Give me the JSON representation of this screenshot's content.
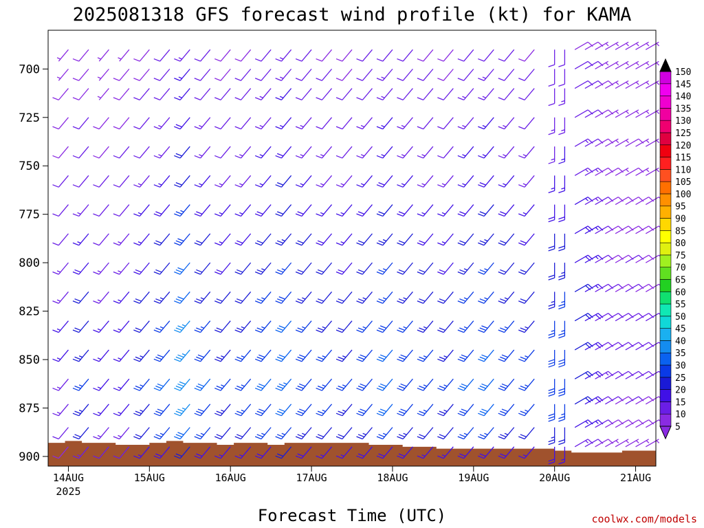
{
  "chart_data": {
    "type": "wind-barb-time-height",
    "title": "2025081318 GFS forecast wind profile (kt) for KAMA",
    "xlabel": "Forecast Time (UTC)",
    "ylabel": "",
    "y_axis": {
      "unit": "hPa",
      "inverted": true,
      "range": [
        680,
        905
      ],
      "ticks": [
        700,
        725,
        750,
        775,
        800,
        825,
        850,
        875,
        900
      ]
    },
    "x_axis": {
      "range_hours": [
        -6,
        174
      ],
      "ticks": [
        {
          "hour": 0,
          "label": "14AUG",
          "sublabel": "2025"
        },
        {
          "hour": 24,
          "label": "15AUG",
          "sublabel": ""
        },
        {
          "hour": 48,
          "label": "16AUG",
          "sublabel": ""
        },
        {
          "hour": 72,
          "label": "17AUG",
          "sublabel": ""
        },
        {
          "hour": 96,
          "label": "18AUG",
          "sublabel": ""
        },
        {
          "hour": 120,
          "label": "19AUG",
          "sublabel": ""
        },
        {
          "hour": 144,
          "label": "20AUG",
          "sublabel": ""
        },
        {
          "hour": 168,
          "label": "21AUG",
          "sublabel": ""
        }
      ]
    },
    "colorbar": {
      "unit": "kt",
      "levels": [
        5,
        10,
        15,
        20,
        25,
        30,
        35,
        40,
        45,
        50,
        55,
        60,
        65,
        70,
        75,
        80,
        85,
        90,
        95,
        100,
        105,
        110,
        115,
        120,
        125,
        130,
        135,
        140,
        145,
        150
      ],
      "colors": [
        "#8a2be2",
        "#6a1ee6",
        "#4010e6",
        "#1a1ad6",
        "#0a3ae6",
        "#0a62f0",
        "#148cf0",
        "#1ab0f0",
        "#10d8d8",
        "#10e8b4",
        "#10e070",
        "#22d022",
        "#60e020",
        "#a0f020",
        "#e0f010",
        "#ffff00",
        "#ffd800",
        "#ffb000",
        "#ff9000",
        "#ff7000",
        "#ff5020",
        "#ff2020",
        "#f00010",
        "#e00040",
        "#f00070",
        "#f000a0",
        "#f000d0",
        "#f000f0",
        "#d000e0",
        "#000000"
      ]
    },
    "terrain": {
      "color": "#a0522d",
      "surface_pressure_hpa": [
        893,
        892,
        893,
        893,
        894,
        894,
        893,
        892,
        893,
        893,
        894,
        893,
        893,
        894,
        893,
        893,
        893,
        893,
        893,
        894,
        894,
        895,
        895,
        896,
        896,
        896,
        896,
        896,
        896,
        896,
        897,
        898,
        898,
        898,
        897,
        897
      ]
    },
    "wind_rows": [
      {
        "pressure": 690,
        "speeds_kt": [
          7,
          8,
          6,
          7,
          9,
          10,
          14,
          10,
          8,
          9,
          11,
          13,
          10,
          9,
          8,
          10,
          12,
          10,
          9,
          8,
          11,
          12,
          10,
          9,
          10,
          11,
          9,
          9,
          7,
          6,
          5,
          6,
          5,
          5,
          5,
          6
        ]
      },
      {
        "pressure": 700,
        "speeds_kt": [
          7,
          8,
          7,
          8,
          9,
          11,
          15,
          11,
          9,
          10,
          12,
          14,
          11,
          10,
          9,
          11,
          13,
          11,
          10,
          9,
          12,
          13,
          11,
          10,
          11,
          12,
          10,
          10,
          7,
          6,
          6,
          6,
          5,
          5,
          6,
          7
        ]
      },
      {
        "pressure": 710,
        "speeds_kt": [
          8,
          9,
          7,
          8,
          10,
          12,
          16,
          12,
          10,
          11,
          13,
          15,
          12,
          11,
          10,
          12,
          14,
          12,
          11,
          10,
          13,
          14,
          12,
          11,
          12,
          13,
          11,
          10,
          8,
          6,
          6,
          7,
          6,
          6,
          6,
          7
        ]
      },
      {
        "pressure": 725,
        "speeds_kt": [
          8,
          10,
          8,
          9,
          11,
          13,
          18,
          13,
          11,
          12,
          14,
          16,
          13,
          12,
          11,
          13,
          15,
          13,
          12,
          11,
          14,
          15,
          13,
          12,
          13,
          14,
          12,
          11,
          8,
          7,
          6,
          7,
          6,
          6,
          7,
          8
        ]
      },
      {
        "pressure": 740,
        "speeds_kt": [
          9,
          11,
          9,
          10,
          12,
          14,
          20,
          14,
          12,
          13,
          15,
          18,
          14,
          13,
          12,
          14,
          17,
          14,
          13,
          12,
          15,
          17,
          14,
          13,
          14,
          15,
          13,
          12,
          9,
          7,
          7,
          8,
          7,
          7,
          7,
          8
        ]
      },
      {
        "pressure": 755,
        "speeds_kt": [
          10,
          12,
          10,
          11,
          13,
          16,
          22,
          16,
          13,
          14,
          17,
          20,
          16,
          14,
          13,
          16,
          19,
          16,
          14,
          13,
          17,
          19,
          16,
          14,
          16,
          17,
          14,
          13,
          9,
          8,
          7,
          8,
          7,
          7,
          8,
          9
        ]
      },
      {
        "pressure": 770,
        "speeds_kt": [
          11,
          14,
          11,
          12,
          15,
          18,
          25,
          18,
          15,
          16,
          19,
          22,
          18,
          16,
          15,
          18,
          21,
          18,
          16,
          15,
          19,
          21,
          18,
          16,
          18,
          19,
          16,
          14,
          10,
          8,
          8,
          9,
          8,
          8,
          8,
          9
        ]
      },
      {
        "pressure": 785,
        "speeds_kt": [
          12,
          16,
          12,
          13,
          17,
          20,
          28,
          20,
          17,
          18,
          21,
          24,
          20,
          18,
          17,
          20,
          23,
          20,
          18,
          17,
          21,
          23,
          20,
          18,
          20,
          21,
          18,
          15,
          10,
          9,
          8,
          9,
          8,
          8,
          9,
          10
        ]
      },
      {
        "pressure": 800,
        "speeds_kt": [
          13,
          18,
          13,
          14,
          19,
          22,
          30,
          22,
          19,
          20,
          23,
          26,
          22,
          20,
          19,
          22,
          25,
          22,
          20,
          19,
          23,
          25,
          22,
          20,
          22,
          23,
          19,
          16,
          11,
          9,
          9,
          10,
          9,
          9,
          9,
          10
        ]
      },
      {
        "pressure": 815,
        "speeds_kt": [
          14,
          20,
          14,
          15,
          20,
          24,
          32,
          24,
          20,
          22,
          25,
          28,
          24,
          22,
          20,
          24,
          27,
          24,
          22,
          20,
          25,
          27,
          24,
          22,
          24,
          25,
          20,
          17,
          11,
          10,
          9,
          10,
          9,
          9,
          10,
          11
        ]
      },
      {
        "pressure": 830,
        "speeds_kt": [
          15,
          22,
          15,
          16,
          22,
          26,
          35,
          26,
          22,
          24,
          27,
          30,
          26,
          24,
          22,
          26,
          29,
          26,
          24,
          22,
          27,
          29,
          26,
          24,
          26,
          27,
          21,
          18,
          12,
          10,
          10,
          11,
          10,
          10,
          10,
          11
        ]
      },
      {
        "pressure": 845,
        "speeds_kt": [
          15,
          24,
          16,
          17,
          24,
          28,
          37,
          28,
          24,
          26,
          29,
          32,
          28,
          26,
          24,
          28,
          31,
          28,
          26,
          24,
          29,
          31,
          28,
          26,
          28,
          28,
          22,
          19,
          12,
          11,
          10,
          11,
          10,
          10,
          11,
          12
        ]
      },
      {
        "pressure": 860,
        "speeds_kt": [
          14,
          25,
          16,
          17,
          25,
          30,
          38,
          30,
          25,
          27,
          30,
          33,
          29,
          27,
          25,
          29,
          32,
          29,
          27,
          25,
          30,
          32,
          29,
          27,
          29,
          28,
          22,
          19,
          13,
          11,
          10,
          11,
          10,
          10,
          11,
          12
        ]
      },
      {
        "pressure": 873,
        "speeds_kt": [
          13,
          24,
          15,
          16,
          24,
          29,
          36,
          29,
          24,
          26,
          29,
          31,
          28,
          26,
          24,
          28,
          30,
          28,
          26,
          24,
          29,
          30,
          28,
          26,
          28,
          26,
          20,
          18,
          12,
          10,
          9,
          10,
          9,
          9,
          10,
          11
        ]
      },
      {
        "pressure": 885,
        "speeds_kt": [
          11,
          20,
          13,
          14,
          20,
          25,
          30,
          25,
          20,
          22,
          25,
          27,
          24,
          22,
          20,
          24,
          26,
          24,
          22,
          20,
          25,
          26,
          24,
          22,
          24,
          22,
          17,
          15,
          10,
          9,
          8,
          9,
          8,
          8,
          9,
          10
        ]
      },
      {
        "pressure": 895,
        "speeds_kt": [
          8,
          14,
          10,
          11,
          15,
          18,
          22,
          18,
          15,
          16,
          18,
          20,
          18,
          16,
          15,
          18,
          19,
          18,
          16,
          15,
          18,
          19,
          18,
          16,
          18,
          16,
          13,
          11,
          8,
          7,
          6,
          7,
          6,
          6,
          7,
          8
        ]
      }
    ],
    "wind_rows_hours": [
      0,
      6,
      12,
      18,
      24,
      30,
      36,
      42,
      48,
      54,
      60,
      66,
      72,
      78,
      84,
      90,
      96,
      102,
      108,
      114,
      120,
      126,
      132,
      138,
      144,
      147,
      150,
      153,
      156,
      159,
      162,
      165,
      168,
      171,
      174,
      177
    ],
    "wind_direction_deg_by_period": [
      {
        "from_hour": 0,
        "to_hour": 138,
        "direction_deg": 220
      },
      {
        "from_hour": 141,
        "to_hour": 148,
        "direction_deg": 180
      },
      {
        "from_hour": 149,
        "to_hour": 177,
        "direction_deg": 60
      }
    ],
    "credit": "coolwx.com/models"
  }
}
